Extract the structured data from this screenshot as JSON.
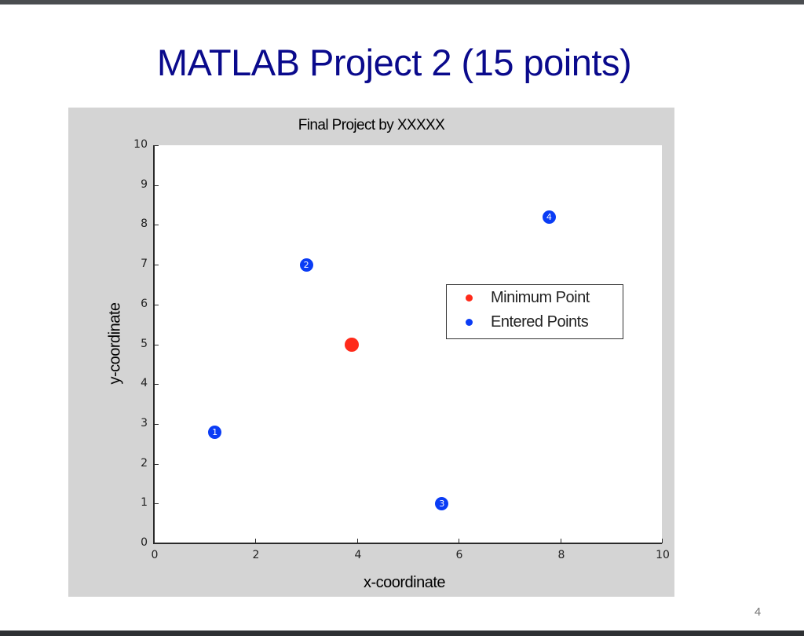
{
  "slide": {
    "title": "MATLAB Project 2 (15 points)",
    "page_number": "4"
  },
  "colors": {
    "title": "#0a0a8c",
    "figure_bg": "#d4d4d4",
    "minimum_point": "#ff2a1a",
    "entered_points": "#0a3cf5"
  },
  "chart_data": {
    "type": "scatter",
    "title": "Final Project by XXXXX",
    "xlabel": "x-coordinate",
    "ylabel": "y-coordinate",
    "xlim": [
      0,
      10
    ],
    "ylim": [
      0,
      10
    ],
    "x_ticks": [
      "0",
      "2",
      "4",
      "6",
      "8",
      "10"
    ],
    "y_ticks": [
      "0",
      "1",
      "2",
      "3",
      "4",
      "5",
      "6",
      "7",
      "8",
      "9",
      "10"
    ],
    "grid": false,
    "legend_position": "inside-right",
    "legend": [
      "Minimum Point",
      "Entered Points"
    ],
    "series": [
      {
        "name": "Minimum Point",
        "color": "#ff2a1a",
        "points": [
          {
            "x": 3.9,
            "y": 5.0
          }
        ]
      },
      {
        "name": "Entered Points",
        "color": "#0a3cf5",
        "points": [
          {
            "label": "1",
            "x": 1.2,
            "y": 2.8
          },
          {
            "label": "2",
            "x": 3.0,
            "y": 7.0
          },
          {
            "label": "3",
            "x": 5.67,
            "y": 1.0
          },
          {
            "label": "4",
            "x": 7.78,
            "y": 8.2
          }
        ]
      }
    ]
  }
}
